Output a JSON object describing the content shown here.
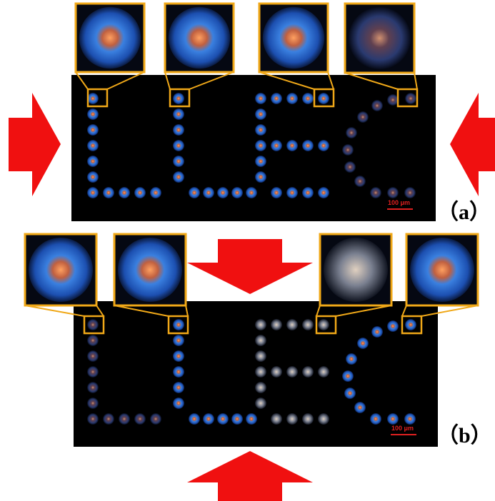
{
  "panels": [
    {
      "label": "（a）",
      "scale_bar": "100 μm"
    },
    {
      "label": "（b）",
      "scale_bar": "100 μm"
    }
  ]
}
